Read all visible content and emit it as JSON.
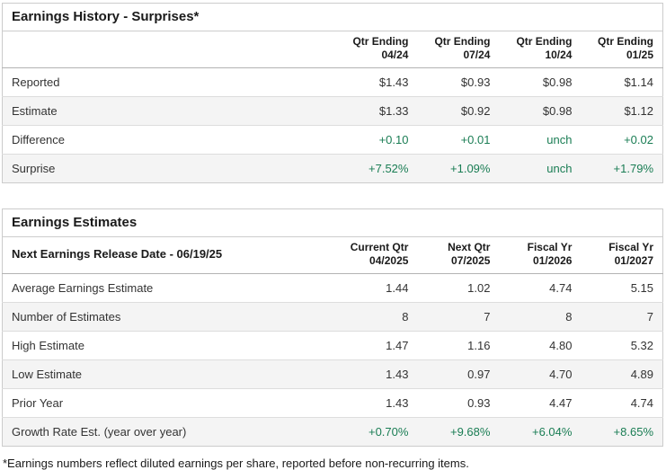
{
  "colors": {
    "positive_value": "#1a7d54",
    "alt_row_background": "#f4f4f4",
    "table_border": "#cccccc"
  },
  "earnings_history": {
    "title": "Earnings History - Surprises*",
    "columns": [
      {
        "line1": "Qtr Ending",
        "line2": "04/24"
      },
      {
        "line1": "Qtr Ending",
        "line2": "07/24"
      },
      {
        "line1": "Qtr Ending",
        "line2": "10/24"
      },
      {
        "line1": "Qtr Ending",
        "line2": "01/25"
      }
    ],
    "rows": [
      {
        "label": "Reported",
        "values": [
          "$1.43",
          "$0.93",
          "$0.98",
          "$1.14"
        ]
      },
      {
        "label": "Estimate",
        "values": [
          "$1.33",
          "$0.92",
          "$0.98",
          "$1.12"
        ]
      },
      {
        "label": "Difference",
        "values": [
          "+0.10",
          "+0.01",
          "unch",
          "+0.02"
        ]
      },
      {
        "label": "Surprise",
        "values": [
          "+7.52%",
          "+1.09%",
          "unch",
          "+1.79%"
        ]
      }
    ]
  },
  "earnings_estimates": {
    "title": "Earnings Estimates",
    "release_date_label": "Next Earnings Release Date - 06/19/25",
    "columns": [
      {
        "line1": "Current Qtr",
        "line2": "04/2025"
      },
      {
        "line1": "Next Qtr",
        "line2": "07/2025"
      },
      {
        "line1": "Fiscal Yr",
        "line2": "01/2026"
      },
      {
        "line1": "Fiscal Yr",
        "line2": "01/2027"
      }
    ],
    "rows": [
      {
        "label": "Average Earnings Estimate",
        "values": [
          "1.44",
          "1.02",
          "4.74",
          "5.15"
        ]
      },
      {
        "label": "Number of Estimates",
        "values": [
          "8",
          "7",
          "8",
          "7"
        ]
      },
      {
        "label": "High Estimate",
        "values": [
          "1.47",
          "1.16",
          "4.80",
          "5.32"
        ]
      },
      {
        "label": "Low Estimate",
        "values": [
          "1.43",
          "0.97",
          "4.70",
          "4.89"
        ]
      },
      {
        "label": "Prior Year",
        "values": [
          "1.43",
          "0.93",
          "4.47",
          "4.74"
        ]
      },
      {
        "label": "Growth Rate Est. (year over year)",
        "values": [
          "+0.70%",
          "+9.68%",
          "+6.04%",
          "+8.65%"
        ]
      }
    ]
  },
  "footnote": "*Earnings numbers reflect diluted earnings per share, reported before non-recurring items."
}
